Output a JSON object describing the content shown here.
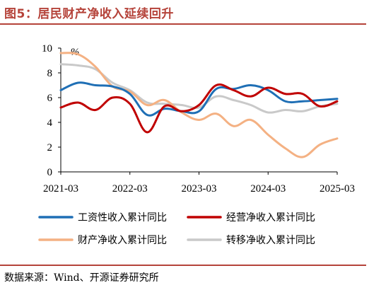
{
  "figure": {
    "title": "图5：居民财产净收入延续回升",
    "source": "数据来源：Wind、开源证券研究所"
  },
  "chart_data": {
    "type": "line",
    "unit": "%",
    "ylim": [
      0,
      10
    ],
    "yticks": [
      0,
      2,
      4,
      6,
      8,
      10
    ],
    "xticks": [
      "2021-03",
      "2022-03",
      "2023-03",
      "2024-03",
      "2025-03"
    ],
    "grid": false,
    "legend_position": "bottom",
    "series": [
      {
        "name": "工资性收入累计同比",
        "color": "#1f6fb5",
        "points": [
          [
            "2021-03",
            6.6
          ],
          [
            "2021-06",
            7.2
          ],
          [
            "2021-09",
            7.0
          ],
          [
            "2021-12",
            6.9
          ],
          [
            "2022-03",
            6.3
          ],
          [
            "2022-06",
            4.6
          ],
          [
            "2022-09",
            5.1
          ],
          [
            "2022-12",
            4.9
          ],
          [
            "2023-03",
            4.9
          ],
          [
            "2023-06",
            6.7
          ],
          [
            "2023-09",
            6.7
          ],
          [
            "2023-12",
            7.0
          ],
          [
            "2024-03",
            6.6
          ],
          [
            "2024-06",
            5.7
          ],
          [
            "2024-09",
            5.7
          ],
          [
            "2024-12",
            5.8
          ],
          [
            "2025-03",
            5.9
          ]
        ]
      },
      {
        "name": "经营净收入累计同比",
        "color": "#c00000",
        "points": [
          [
            "2021-03",
            5.2
          ],
          [
            "2021-06",
            5.6
          ],
          [
            "2021-09",
            5.0
          ],
          [
            "2021-12",
            6.0
          ],
          [
            "2022-03",
            5.5
          ],
          [
            "2022-06",
            3.2
          ],
          [
            "2022-09",
            5.3
          ],
          [
            "2022-12",
            4.9
          ],
          [
            "2023-03",
            5.4
          ],
          [
            "2023-06",
            7.0
          ],
          [
            "2023-09",
            6.6
          ],
          [
            "2023-12",
            6.1
          ],
          [
            "2024-03",
            6.8
          ],
          [
            "2024-06",
            6.3
          ],
          [
            "2024-09",
            6.3
          ],
          [
            "2024-12",
            5.3
          ],
          [
            "2025-03",
            5.7
          ]
        ]
      },
      {
        "name": "财产净收入累计同比",
        "color": "#f4b183",
        "points": [
          [
            "2021-03",
            9.6
          ],
          [
            "2021-06",
            9.5
          ],
          [
            "2021-09",
            8.5
          ],
          [
            "2021-12",
            6.9
          ],
          [
            "2022-03",
            6.5
          ],
          [
            "2022-06",
            5.4
          ],
          [
            "2022-09",
            5.8
          ],
          [
            "2022-12",
            4.8
          ],
          [
            "2023-03",
            4.2
          ],
          [
            "2023-06",
            4.7
          ],
          [
            "2023-09",
            3.7
          ],
          [
            "2023-12",
            4.2
          ],
          [
            "2024-03",
            3.0
          ],
          [
            "2024-06",
            1.9
          ],
          [
            "2024-09",
            1.2
          ],
          [
            "2024-12",
            2.2
          ],
          [
            "2025-03",
            2.7
          ]
        ]
      },
      {
        "name": "转移净收入累计同比",
        "color": "#c9c9c9",
        "points": [
          [
            "2021-03",
            8.7
          ],
          [
            "2021-06",
            8.6
          ],
          [
            "2021-09",
            8.3
          ],
          [
            "2021-12",
            7.2
          ],
          [
            "2022-03",
            6.6
          ],
          [
            "2022-06",
            5.6
          ],
          [
            "2022-09",
            5.5
          ],
          [
            "2022-12",
            5.4
          ],
          [
            "2023-03",
            5.2
          ],
          [
            "2023-06",
            6.1
          ],
          [
            "2023-09",
            5.8
          ],
          [
            "2023-12",
            5.4
          ],
          [
            "2024-03",
            4.8
          ],
          [
            "2024-06",
            5.0
          ],
          [
            "2024-09",
            4.9
          ],
          [
            "2024-12",
            5.3
          ],
          [
            "2025-03",
            5.5
          ]
        ]
      }
    ]
  }
}
